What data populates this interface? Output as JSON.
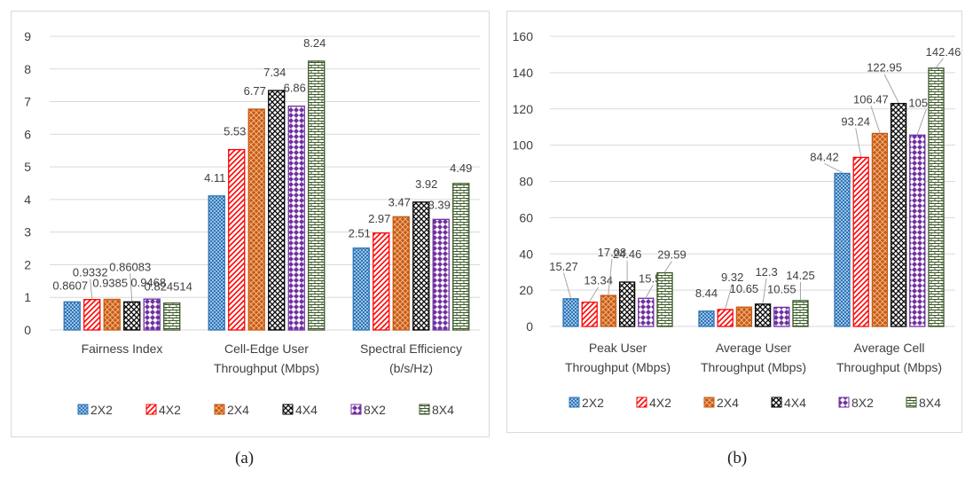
{
  "captions": {
    "a": "(a)",
    "b": "(b)"
  },
  "legend_colors": {
    "2X2": "#2e75b6",
    "4X2": "#ff0000",
    "2X4": "#c55a11",
    "4X4": "#000000",
    "8X2": "#7030a0",
    "8X4": "#375623"
  },
  "chart_data": [
    {
      "type": "bar",
      "categories": [
        "Fairness Index",
        "Cell-Edge User Throughput (Mbps)",
        "Spectral Efficiency (b/s/Hz)"
      ],
      "category_lines": [
        [
          "Fairness Index"
        ],
        [
          "Cell-Edge User",
          "Throughput (Mbps)"
        ],
        [
          "Spectral Efficiency",
          "(b/s/Hz)"
        ]
      ],
      "series": [
        {
          "name": "2X2",
          "values": [
            0.8607,
            4.11,
            2.51
          ],
          "labels": [
            "0.8607",
            "4.11",
            "2.51"
          ]
        },
        {
          "name": "4X2",
          "values": [
            0.9332,
            5.53,
            2.97
          ],
          "labels": [
            "0.9332",
            "5.53",
            "2.97"
          ]
        },
        {
          "name": "2X4",
          "values": [
            0.9385,
            6.77,
            3.47
          ],
          "labels": [
            "0.9385",
            "6.77",
            "3.47"
          ]
        },
        {
          "name": "4X4",
          "values": [
            0.86083,
            7.34,
            3.92
          ],
          "labels": [
            "0.86083",
            "7.34",
            "3.92"
          ]
        },
        {
          "name": "8X2",
          "values": [
            0.9468,
            6.86,
            3.39
          ],
          "labels": [
            "0.9468",
            "6.86",
            "3.39"
          ]
        },
        {
          "name": "8X4",
          "values": [
            0.824514,
            8.24,
            4.49
          ],
          "labels": [
            "0.824514",
            "8.24",
            "4.49"
          ]
        }
      ],
      "ylim": [
        0,
        9
      ],
      "yticks": [
        0,
        1,
        2,
        3,
        4,
        5,
        6,
        7,
        8,
        9
      ],
      "grid": true,
      "legend": "bottom"
    },
    {
      "type": "bar",
      "categories": [
        "Peak User Throughput (Mbps)",
        "Average User Throughput (Mbps)",
        "Average Cell Throughput (Mbps)"
      ],
      "category_lines": [
        [
          "Peak User",
          "Throughput (Mbps)"
        ],
        [
          "Average User",
          "Throughput (Mbps)"
        ],
        [
          "Average Cell",
          "Throughput (Mbps)"
        ]
      ],
      "series": [
        {
          "name": "2X2",
          "values": [
            15.27,
            8.44,
            84.42
          ],
          "labels": [
            "15.27",
            "8.44",
            "84.42"
          ]
        },
        {
          "name": "4X2",
          "values": [
            13.34,
            9.32,
            93.24
          ],
          "labels": [
            "13.34",
            "9.32",
            "93.24"
          ]
        },
        {
          "name": "2X4",
          "values": [
            17.08,
            10.65,
            106.47
          ],
          "labels": [
            "17.08",
            "10.65",
            "106.47"
          ]
        },
        {
          "name": "4X4",
          "values": [
            24.46,
            12.3,
            122.95
          ],
          "labels": [
            "24.46",
            "12.3",
            "122.95"
          ]
        },
        {
          "name": "8X2",
          "values": [
            15.52,
            10.55,
            105.55
          ],
          "labels": [
            "15.52",
            "10.55",
            "105.55"
          ]
        },
        {
          "name": "8X4",
          "values": [
            29.59,
            14.25,
            142.46
          ],
          "labels": [
            "29.59",
            "14.25",
            "142.46"
          ]
        }
      ],
      "ylim": [
        0,
        160
      ],
      "yticks": [
        0,
        20,
        40,
        60,
        80,
        100,
        120,
        140,
        160
      ],
      "grid": true,
      "legend": "bottom"
    }
  ]
}
